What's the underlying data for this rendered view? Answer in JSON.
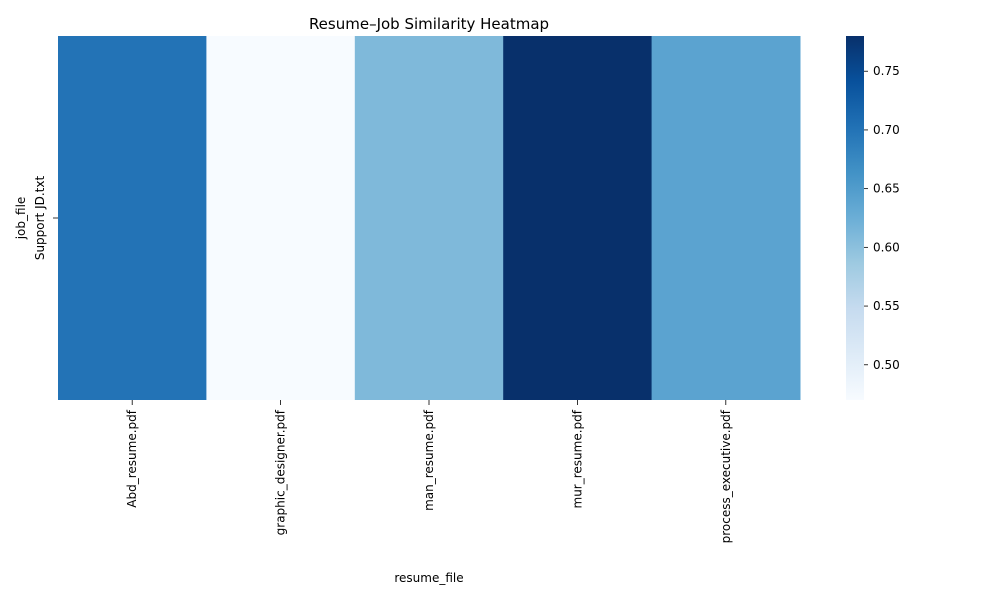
{
  "chart_data": {
    "type": "heatmap",
    "title": "Resume–Job Similarity Heatmap",
    "xlabel": "resume_file",
    "ylabel": "job_file",
    "x_categories": [
      "Abd_resume.pdf",
      "graphic_designer.pdf",
      "man_resume.pdf",
      "mur_resume.pdf",
      "process_executive.pdf"
    ],
    "y_categories": [
      "Support JD.txt"
    ],
    "values": [
      [
        0.7,
        0.47,
        0.61,
        0.78,
        0.64
      ]
    ],
    "colormap": "Blues",
    "colorbar": {
      "range": [
        0.47,
        0.78
      ],
      "ticks": [
        0.5,
        0.55,
        0.6,
        0.65,
        0.7,
        0.75
      ],
      "tick_labels": [
        "0.50",
        "0.55",
        "0.60",
        "0.65",
        "0.70",
        "0.75"
      ]
    },
    "grid": false
  }
}
